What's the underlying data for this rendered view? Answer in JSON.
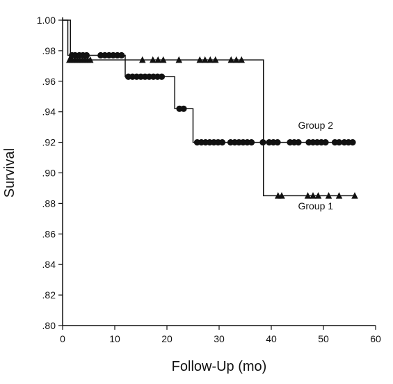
{
  "chart_data": {
    "type": "line",
    "title": "",
    "xlabel": "Follow-Up (mo)",
    "ylabel": "Survival",
    "xlim": [
      0,
      60
    ],
    "ylim": [
      0.8,
      1.0
    ],
    "xticks": [
      0,
      10,
      20,
      30,
      40,
      50,
      60
    ],
    "xtick_labels": [
      "0",
      "10",
      "20",
      "30",
      "40",
      "50",
      "60"
    ],
    "yticks": [
      0.8,
      0.82,
      0.84,
      0.86,
      0.88,
      0.9,
      0.92,
      0.94,
      0.96,
      0.98,
      1.0
    ],
    "ytick_labels": [
      ".80",
      ".82",
      ".84",
      ".86",
      ".88",
      ".90",
      ".92",
      ".94",
      ".96",
      ".98",
      "1.00"
    ],
    "grid": false,
    "legend": "none",
    "series": [
      {
        "name": "Group 1",
        "marker": "triangle",
        "color": "#111111",
        "steps": [
          [
            0,
            1.0
          ],
          [
            1.5,
            0.974
          ],
          [
            38.5,
            0.885
          ],
          [
            56,
            0.885
          ]
        ],
        "censored": [
          [
            1.3,
            0.974
          ],
          [
            1.8,
            0.974
          ],
          [
            2.3,
            0.974
          ],
          [
            2.8,
            0.974
          ],
          [
            3.3,
            0.974
          ],
          [
            3.8,
            0.974
          ],
          [
            4.3,
            0.974
          ],
          [
            4.8,
            0.974
          ],
          [
            5.3,
            0.974
          ],
          [
            15.3,
            0.974
          ],
          [
            17.3,
            0.974
          ],
          [
            18.3,
            0.974
          ],
          [
            19.3,
            0.974
          ],
          [
            22.3,
            0.974
          ],
          [
            26.3,
            0.974
          ],
          [
            27.3,
            0.974
          ],
          [
            28.3,
            0.974
          ],
          [
            29.3,
            0.974
          ],
          [
            32.3,
            0.974
          ],
          [
            33.3,
            0.974
          ],
          [
            34.3,
            0.974
          ],
          [
            41.3,
            0.885
          ],
          [
            42.0,
            0.885
          ],
          [
            47.0,
            0.885
          ],
          [
            48.0,
            0.885
          ],
          [
            49.0,
            0.885
          ],
          [
            51.0,
            0.885
          ],
          [
            53.0,
            0.885
          ],
          [
            56.0,
            0.885
          ]
        ]
      },
      {
        "name": "Group 2",
        "marker": "circle",
        "color": "#111111",
        "steps": [
          [
            0,
            1.0
          ],
          [
            1.0,
            0.977
          ],
          [
            12.0,
            0.963
          ],
          [
            21.5,
            0.942
          ],
          [
            25.0,
            0.92
          ],
          [
            56,
            0.92
          ]
        ],
        "censored": [
          [
            1.8,
            0.977
          ],
          [
            2.4,
            0.977
          ],
          [
            3.2,
            0.977
          ],
          [
            3.9,
            0.977
          ],
          [
            4.6,
            0.977
          ],
          [
            7.3,
            0.977
          ],
          [
            8.1,
            0.977
          ],
          [
            8.9,
            0.977
          ],
          [
            9.7,
            0.977
          ],
          [
            10.5,
            0.977
          ],
          [
            11.3,
            0.977
          ],
          [
            12.6,
            0.963
          ],
          [
            13.4,
            0.963
          ],
          [
            14.2,
            0.963
          ],
          [
            15.0,
            0.963
          ],
          [
            15.8,
            0.963
          ],
          [
            16.6,
            0.963
          ],
          [
            17.4,
            0.963
          ],
          [
            18.2,
            0.963
          ],
          [
            19.0,
            0.963
          ],
          [
            22.4,
            0.942
          ],
          [
            23.2,
            0.942
          ],
          [
            25.8,
            0.92
          ],
          [
            26.6,
            0.92
          ],
          [
            27.4,
            0.92
          ],
          [
            28.2,
            0.92
          ],
          [
            29.0,
            0.92
          ],
          [
            29.8,
            0.92
          ],
          [
            30.6,
            0.92
          ],
          [
            32.2,
            0.92
          ],
          [
            33.0,
            0.92
          ],
          [
            33.8,
            0.92
          ],
          [
            34.6,
            0.92
          ],
          [
            35.4,
            0.92
          ],
          [
            36.2,
            0.92
          ],
          [
            38.4,
            0.92
          ],
          [
            39.6,
            0.92
          ],
          [
            40.4,
            0.92
          ],
          [
            41.2,
            0.92
          ],
          [
            43.6,
            0.92
          ],
          [
            44.4,
            0.92
          ],
          [
            45.2,
            0.92
          ],
          [
            47.2,
            0.92
          ],
          [
            48.0,
            0.92
          ],
          [
            48.8,
            0.92
          ],
          [
            49.6,
            0.92
          ],
          [
            50.4,
            0.92
          ],
          [
            52.2,
            0.92
          ],
          [
            53.0,
            0.92
          ],
          [
            54.0,
            0.92
          ],
          [
            54.8,
            0.92
          ],
          [
            55.6,
            0.92
          ]
        ]
      }
    ],
    "annotations": [
      {
        "text": "Group 2",
        "x": 48.5,
        "y": 0.929
      },
      {
        "text": "Group 1",
        "x": 48.5,
        "y": 0.876
      }
    ]
  }
}
